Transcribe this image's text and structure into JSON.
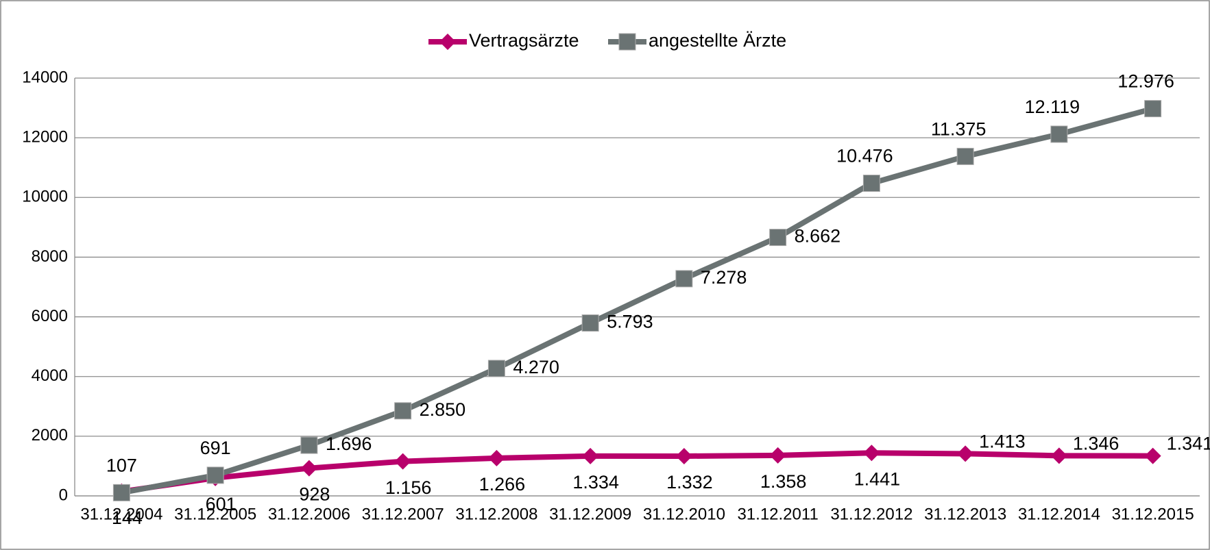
{
  "chart_data": {
    "type": "line",
    "categories": [
      "31.12.2004",
      "31.12.2005",
      "31.12.2006",
      "31.12.2007",
      "31.12.2008",
      "31.12.2009",
      "31.12.2010",
      "31.12.2011",
      "31.12.2012",
      "31.12.2013",
      "31.12.2014",
      "31.12.2015"
    ],
    "series": [
      {
        "name": "Vertragsärzte",
        "color": "#b8006b",
        "marker": "diamond",
        "values": [
          144,
          601,
          928,
          1156,
          1266,
          1334,
          1332,
          1358,
          1441,
          1413,
          1346,
          1341
        ],
        "value_labels": [
          "144",
          "601",
          "928",
          "1.156",
          "1.266",
          "1.334",
          "1.332",
          "1.358",
          "1.441",
          "1.413",
          "1.346",
          "1.341"
        ]
      },
      {
        "name": "angestellte Ärzte",
        "color": "#6a7373",
        "marker": "square",
        "values": [
          107,
          691,
          1696,
          2850,
          4270,
          5793,
          7278,
          8662,
          10476,
          11375,
          12119,
          12976
        ],
        "value_labels": [
          "107",
          "691",
          "1.696",
          "2.850",
          "4.270",
          "5.793",
          "7.278",
          "8.662",
          "10.476",
          "11.375",
          "12.119",
          "12.976"
        ]
      }
    ],
    "ylim": [
      0,
      14000
    ],
    "yticks": [
      0,
      2000,
      4000,
      6000,
      8000,
      10000,
      12000,
      14000
    ],
    "grid": true,
    "legend": "top"
  }
}
